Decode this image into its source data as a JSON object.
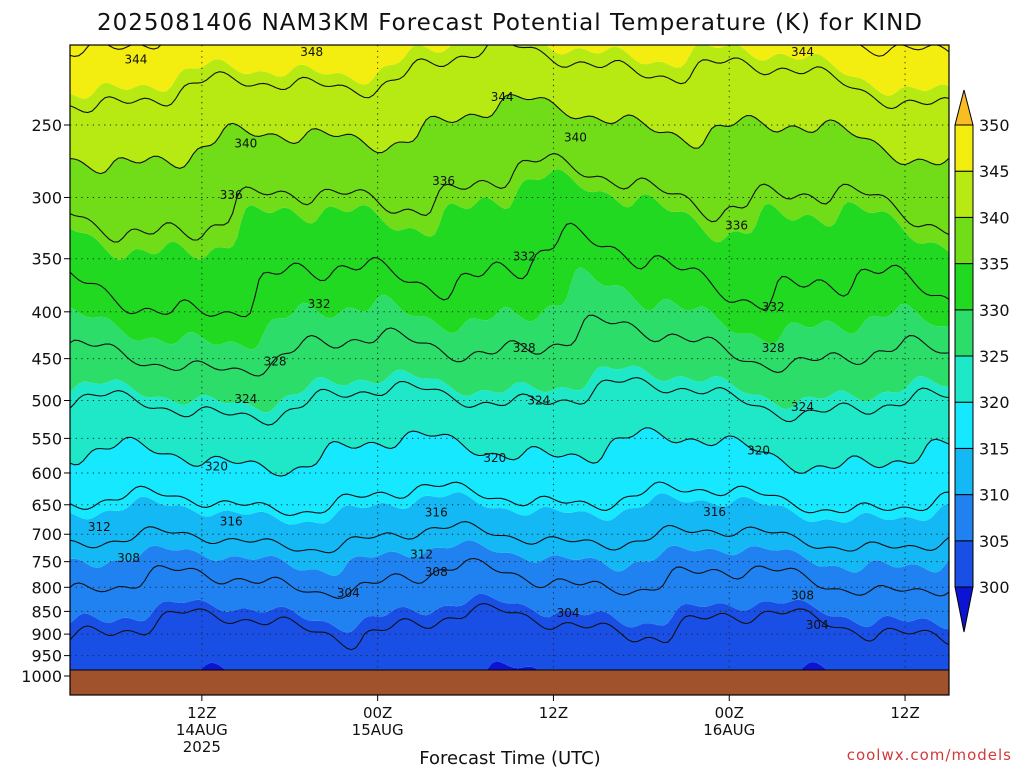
{
  "chart_data": {
    "type": "heatmap",
    "title": "2025081406 NAM3KM Forecast Potential Temperature (K) for KIND",
    "xlabel": "Forecast Time (UTC)",
    "ylabel": "",
    "credit": "coolwx.com/models",
    "x_range_hours": [
      3,
      63
    ],
    "x_ticks": [
      {
        "hour": 12,
        "lines": [
          "12Z",
          "14AUG",
          "2025"
        ]
      },
      {
        "hour": 24,
        "lines": [
          "00Z",
          "15AUG"
        ]
      },
      {
        "hour": 36,
        "lines": [
          "12Z"
        ]
      },
      {
        "hour": 48,
        "lines": [
          "00Z",
          "16AUG"
        ]
      },
      {
        "hour": 60,
        "lines": [
          "12Z"
        ]
      }
    ],
    "y_scale": "log-pressure",
    "y_range_hpa": [
      1000,
      200
    ],
    "y_ticks": [
      250,
      300,
      350,
      400,
      450,
      500,
      550,
      600,
      650,
      700,
      750,
      800,
      850,
      900,
      950,
      1000
    ],
    "colorbar": {
      "levels": [
        300,
        305,
        310,
        315,
        320,
        325,
        330,
        335,
        340,
        345,
        350
      ],
      "colors": [
        "#0a14d2",
        "#1a4fe6",
        "#1f82f0",
        "#14b8f5",
        "#16e8ff",
        "#1ee8c8",
        "#2ddd6a",
        "#22d922",
        "#70dd18",
        "#b7ea12",
        "#f4ee10",
        "#f7bd22"
      ]
    },
    "ground_color": "#a0522d",
    "contour_levels": [
      304,
      308,
      312,
      316,
      320,
      324,
      328,
      332,
      336,
      340,
      344,
      348
    ],
    "contour_labels": [
      {
        "value": "348",
        "hour": 19.5,
        "hpa": 208
      },
      {
        "value": "344",
        "hour": 7.5,
        "hpa": 212
      },
      {
        "value": "344",
        "hour": 32.5,
        "hpa": 233
      },
      {
        "value": "344",
        "hour": 53,
        "hpa": 208
      },
      {
        "value": "340",
        "hour": 15,
        "hpa": 262
      },
      {
        "value": "340",
        "hour": 37.5,
        "hpa": 258
      },
      {
        "value": "336",
        "hour": 14,
        "hpa": 298
      },
      {
        "value": "336",
        "hour": 28.5,
        "hpa": 288
      },
      {
        "value": "336",
        "hour": 48.5,
        "hpa": 322
      },
      {
        "value": "332",
        "hour": 34,
        "hpa": 348
      },
      {
        "value": "332",
        "hour": 20,
        "hpa": 392
      },
      {
        "value": "332",
        "hour": 51,
        "hpa": 395
      },
      {
        "value": "328",
        "hour": 17,
        "hpa": 453
      },
      {
        "value": "328",
        "hour": 34,
        "hpa": 438
      },
      {
        "value": "328",
        "hour": 51,
        "hpa": 438
      },
      {
        "value": "324",
        "hour": 15,
        "hpa": 498
      },
      {
        "value": "324",
        "hour": 35,
        "hpa": 500
      },
      {
        "value": "324",
        "hour": 53,
        "hpa": 508
      },
      {
        "value": "320",
        "hour": 13,
        "hpa": 590
      },
      {
        "value": "320",
        "hour": 32,
        "hpa": 578
      },
      {
        "value": "320",
        "hour": 50,
        "hpa": 567
      },
      {
        "value": "316",
        "hour": 14,
        "hpa": 678
      },
      {
        "value": "316",
        "hour": 28,
        "hpa": 663
      },
      {
        "value": "316",
        "hour": 47,
        "hpa": 662
      },
      {
        "value": "312",
        "hour": 5,
        "hpa": 687
      },
      {
        "value": "312",
        "hour": 27,
        "hpa": 737
      },
      {
        "value": "308",
        "hour": 7,
        "hpa": 743
      },
      {
        "value": "308",
        "hour": 28,
        "hpa": 770
      },
      {
        "value": "308",
        "hour": 53,
        "hpa": 817
      },
      {
        "value": "304",
        "hour": 22,
        "hpa": 812
      },
      {
        "value": "304",
        "hour": 37,
        "hpa": 853
      },
      {
        "value": "304",
        "hour": 54,
        "hpa": 880
      }
    ]
  }
}
